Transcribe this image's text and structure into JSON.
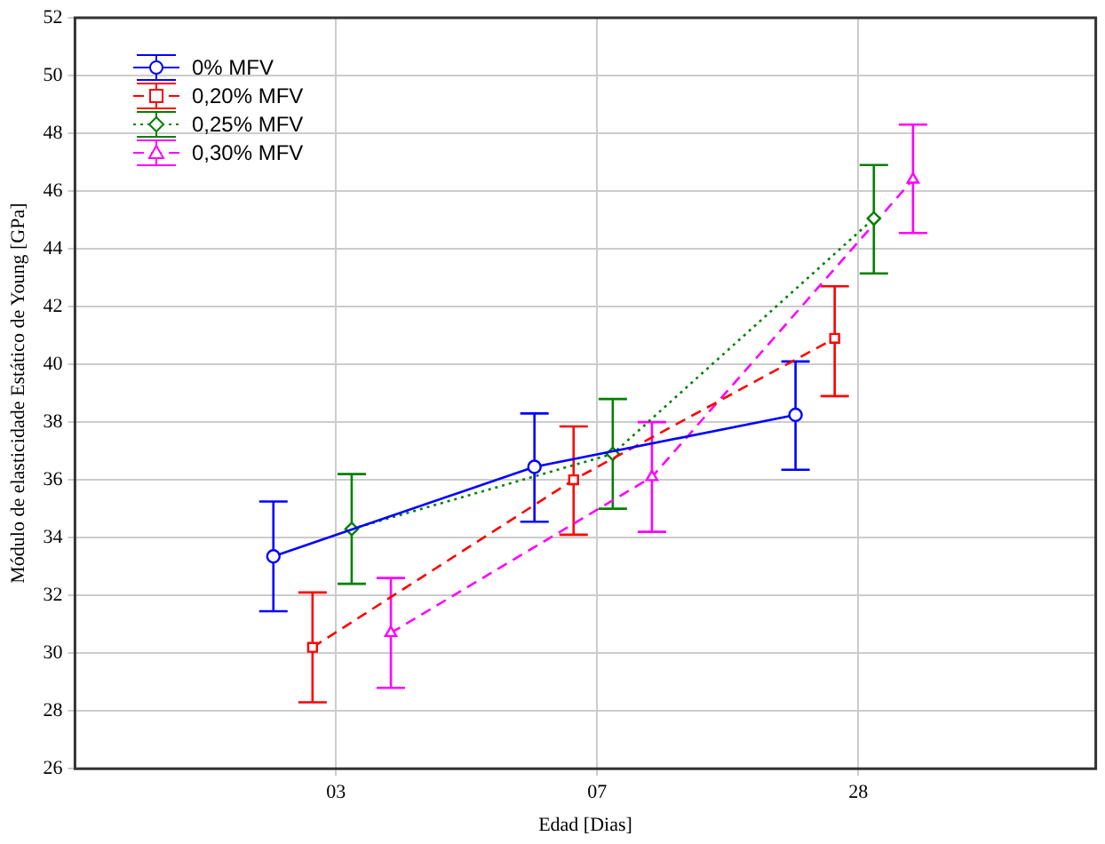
{
  "chart_data": {
    "type": "line",
    "xlabel": "Edad [Dias]",
    "ylabel": "Módulo de elasticidade Estático de Young [GPa]",
    "categories": [
      "03",
      "07",
      "28"
    ],
    "ylim": [
      26,
      52
    ],
    "yticks": [
      26,
      28,
      30,
      32,
      34,
      36,
      38,
      40,
      42,
      44,
      46,
      48,
      50,
      52
    ],
    "grid": true,
    "legend": "top left",
    "series": [
      {
        "name": "0% MFV",
        "color": "#0000ff",
        "marker": "circle",
        "line_style": "solid",
        "values": [
          33.35,
          36.45,
          38.25
        ],
        "errors": [
          [
            31.45,
            35.25
          ],
          [
            34.55,
            38.3
          ],
          [
            36.35,
            40.1
          ]
        ]
      },
      {
        "name": "0,20% MFV",
        "color": "#ff0000",
        "marker": "square",
        "line_style": "dashed",
        "values": [
          30.2,
          36.0,
          40.9
        ],
        "errors": [
          [
            28.3,
            32.1
          ],
          [
            34.1,
            37.85
          ],
          [
            38.9,
            42.7
          ]
        ]
      },
      {
        "name": "0,25% MFV",
        "color": "#008000",
        "marker": "diamond",
        "line_style": "dotted",
        "values": [
          34.3,
          36.9,
          45.05
        ],
        "errors": [
          [
            32.4,
            36.2
          ],
          [
            35.0,
            38.8
          ],
          [
            43.15,
            46.9
          ]
        ]
      },
      {
        "name": "0,30% MFV",
        "color": "#ff00ff",
        "marker": "triangle",
        "line_style": "dashed",
        "values": [
          30.7,
          36.1,
          46.4
        ],
        "errors": [
          [
            28.8,
            32.6
          ],
          [
            34.2,
            38.0
          ],
          [
            44.55,
            48.3
          ]
        ]
      }
    ]
  }
}
